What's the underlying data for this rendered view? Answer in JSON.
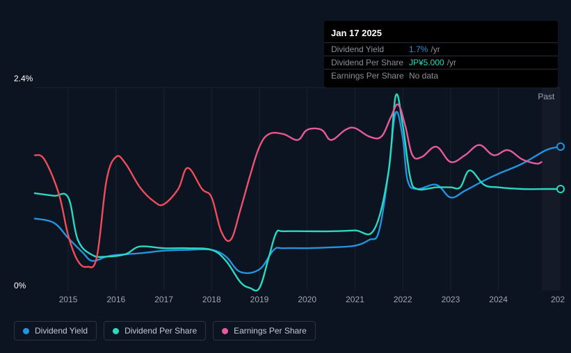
{
  "tooltip": {
    "title": "Jan 17 2025",
    "rows": [
      {
        "label": "Dividend Yield",
        "value": "1.7%",
        "suffix": "/yr",
        "color": "blue"
      },
      {
        "label": "Dividend Per Share",
        "value": "JP¥5.000",
        "suffix": "/yr",
        "color": "teal"
      },
      {
        "label": "Earnings Per Share",
        "value": "No data",
        "suffix": "",
        "color": "grey"
      }
    ]
  },
  "chart": {
    "type": "line",
    "background_color": "#0d1421",
    "grid_color": "#1a2332",
    "y_axis": {
      "top_label": "2.4%",
      "bottom_label": "0%",
      "top_value": 2.4,
      "bottom_value": 0
    },
    "x_axis": {
      "start_year": 2014.3,
      "end_year": 2025.3,
      "ticks": [
        "2015",
        "2016",
        "2017",
        "2018",
        "2019",
        "2020",
        "2021",
        "2022",
        "2023",
        "2024"
      ],
      "partial_end_label": "202"
    },
    "future_shade_from_year": 2024.9,
    "past_label": "Past",
    "past_label_x_year": 2025.0,
    "series": [
      {
        "id": "dividend_yield",
        "label": "Dividend Yield",
        "color": "#2394df",
        "line_width": 2.4,
        "data": [
          [
            2014.3,
            0.85
          ],
          [
            2014.7,
            0.8
          ],
          [
            2015.0,
            0.62
          ],
          [
            2015.3,
            0.45
          ],
          [
            2015.5,
            0.35
          ],
          [
            2015.8,
            0.4
          ],
          [
            2016.0,
            0.42
          ],
          [
            2016.5,
            0.44
          ],
          [
            2017.0,
            0.47
          ],
          [
            2017.5,
            0.48
          ],
          [
            2018.0,
            0.48
          ],
          [
            2018.3,
            0.4
          ],
          [
            2018.6,
            0.22
          ],
          [
            2019.0,
            0.25
          ],
          [
            2019.3,
            0.48
          ],
          [
            2019.5,
            0.5
          ],
          [
            2020.0,
            0.5
          ],
          [
            2020.5,
            0.51
          ],
          [
            2021.0,
            0.53
          ],
          [
            2021.3,
            0.6
          ],
          [
            2021.5,
            0.7
          ],
          [
            2021.7,
            1.4
          ],
          [
            2021.85,
            2.1
          ],
          [
            2022.0,
            1.8
          ],
          [
            2022.1,
            1.3
          ],
          [
            2022.3,
            1.2
          ],
          [
            2022.7,
            1.25
          ],
          [
            2023.0,
            1.1
          ],
          [
            2023.3,
            1.18
          ],
          [
            2023.7,
            1.3
          ],
          [
            2024.0,
            1.38
          ],
          [
            2024.5,
            1.5
          ],
          [
            2025.0,
            1.66
          ],
          [
            2025.3,
            1.7
          ]
        ],
        "end_marker": true
      },
      {
        "id": "dividend_per_share",
        "label": "Dividend Per Share",
        "color": "#2bd9c0",
        "line_width": 2.4,
        "data": [
          [
            2014.3,
            1.15
          ],
          [
            2014.7,
            1.12
          ],
          [
            2015.0,
            1.1
          ],
          [
            2015.2,
            0.6
          ],
          [
            2015.5,
            0.42
          ],
          [
            2015.8,
            0.4
          ],
          [
            2016.2,
            0.43
          ],
          [
            2016.5,
            0.52
          ],
          [
            2017.0,
            0.5
          ],
          [
            2017.5,
            0.5
          ],
          [
            2018.0,
            0.48
          ],
          [
            2018.3,
            0.35
          ],
          [
            2018.6,
            0.1
          ],
          [
            2018.8,
            0.03
          ],
          [
            2019.0,
            0.03
          ],
          [
            2019.2,
            0.4
          ],
          [
            2019.35,
            0.68
          ],
          [
            2019.5,
            0.7
          ],
          [
            2020.0,
            0.7
          ],
          [
            2020.5,
            0.7
          ],
          [
            2021.0,
            0.71
          ],
          [
            2021.4,
            0.72
          ],
          [
            2021.7,
            1.4
          ],
          [
            2021.85,
            2.3
          ],
          [
            2022.0,
            1.95
          ],
          [
            2022.15,
            1.35
          ],
          [
            2022.3,
            1.2
          ],
          [
            2022.7,
            1.22
          ],
          [
            2023.0,
            1.22
          ],
          [
            2023.2,
            1.22
          ],
          [
            2023.4,
            1.42
          ],
          [
            2023.7,
            1.25
          ],
          [
            2024.0,
            1.22
          ],
          [
            2024.5,
            1.2
          ],
          [
            2025.0,
            1.2
          ],
          [
            2025.3,
            1.2
          ]
        ],
        "end_marker": true
      },
      {
        "id": "earnings_per_share",
        "label": "Earnings Per Share",
        "color_stops": [
          [
            0.0,
            "#f04d59"
          ],
          [
            0.35,
            "#f04d59"
          ],
          [
            0.55,
            "#e85aa0"
          ],
          [
            1.0,
            "#e85aa0"
          ]
        ],
        "legend_color": "#e85aa0",
        "line_width": 2.4,
        "data": [
          [
            2014.3,
            1.6
          ],
          [
            2014.5,
            1.55
          ],
          [
            2014.8,
            1.15
          ],
          [
            2015.0,
            0.65
          ],
          [
            2015.2,
            0.35
          ],
          [
            2015.4,
            0.28
          ],
          [
            2015.6,
            0.4
          ],
          [
            2015.8,
            1.3
          ],
          [
            2016.0,
            1.58
          ],
          [
            2016.2,
            1.5
          ],
          [
            2016.5,
            1.22
          ],
          [
            2016.8,
            1.05
          ],
          [
            2017.0,
            1.02
          ],
          [
            2017.3,
            1.2
          ],
          [
            2017.5,
            1.45
          ],
          [
            2017.8,
            1.2
          ],
          [
            2018.0,
            1.1
          ],
          [
            2018.2,
            0.7
          ],
          [
            2018.4,
            0.6
          ],
          [
            2018.6,
            0.95
          ],
          [
            2018.8,
            1.35
          ],
          [
            2019.0,
            1.7
          ],
          [
            2019.2,
            1.85
          ],
          [
            2019.5,
            1.85
          ],
          [
            2019.8,
            1.78
          ],
          [
            2020.0,
            1.9
          ],
          [
            2020.3,
            1.9
          ],
          [
            2020.5,
            1.78
          ],
          [
            2020.8,
            1.9
          ],
          [
            2021.0,
            1.92
          ],
          [
            2021.3,
            1.82
          ],
          [
            2021.55,
            1.82
          ],
          [
            2021.75,
            2.05
          ],
          [
            2021.9,
            2.2
          ],
          [
            2022.05,
            1.95
          ],
          [
            2022.2,
            1.6
          ],
          [
            2022.4,
            1.58
          ],
          [
            2022.7,
            1.7
          ],
          [
            2023.0,
            1.52
          ],
          [
            2023.3,
            1.6
          ],
          [
            2023.6,
            1.72
          ],
          [
            2023.9,
            1.6
          ],
          [
            2024.2,
            1.66
          ],
          [
            2024.5,
            1.55
          ],
          [
            2024.8,
            1.5
          ],
          [
            2024.9,
            1.52
          ]
        ],
        "end_marker": false
      }
    ]
  },
  "legend": {
    "items": [
      {
        "id": "dividend_yield",
        "label": "Dividend Yield",
        "color": "#2394df"
      },
      {
        "id": "dividend_per_share",
        "label": "Dividend Per Share",
        "color": "#2bd9c0"
      },
      {
        "id": "earnings_per_share",
        "label": "Earnings Per Share",
        "color": "#e85aa0"
      }
    ]
  }
}
